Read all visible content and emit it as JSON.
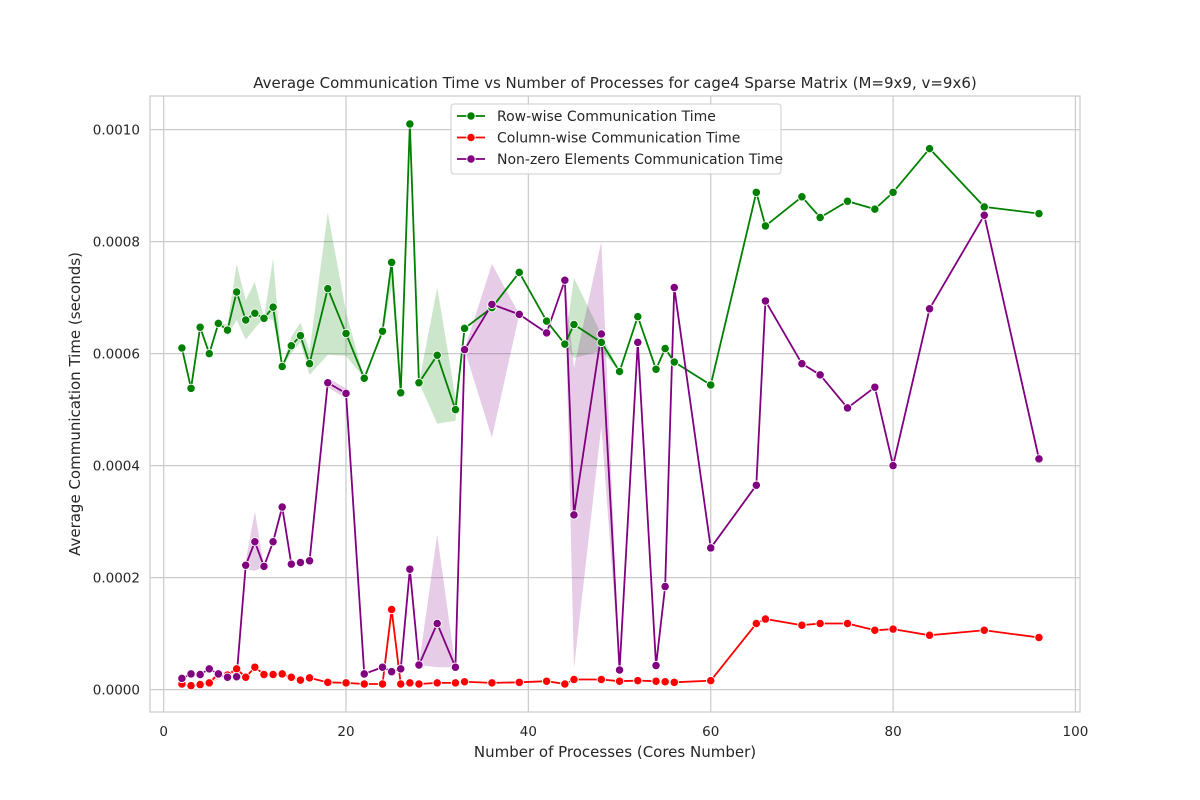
{
  "chart_data": {
    "type": "line",
    "title": "Average Communication Time vs Number of Processes for cage4 Sparse Matrix (M=9x9, v=9x6)",
    "xlabel": "Number of Processes (Cores Number)",
    "ylabel": "Average Communication Time (seconds)",
    "xlim": [
      -1.5,
      100.5
    ],
    "ylim": [
      -4e-05,
      0.00106
    ],
    "xticks": [
      0,
      20,
      40,
      60,
      80,
      100
    ],
    "xtick_labels": [
      "0",
      "20",
      "40",
      "60",
      "80",
      "100"
    ],
    "yticks": [
      0,
      0.0002,
      0.0004,
      0.0006,
      0.0008,
      0.001
    ],
    "ytick_labels": [
      "0.0000",
      "0.0002",
      "0.0004",
      "0.0006",
      "0.0008",
      "0.0010"
    ],
    "grid": true,
    "legend_position": "top-center",
    "series": [
      {
        "name": "Row-wise Communication Time",
        "color": "#008000",
        "x": [
          2,
          3,
          4,
          5,
          6,
          7,
          8,
          9,
          10,
          11,
          12,
          13,
          14,
          15,
          16,
          18,
          20,
          22,
          24,
          25,
          26,
          27,
          28,
          30,
          32,
          33,
          36,
          39,
          42,
          44,
          45,
          48,
          50,
          52,
          54,
          55,
          56,
          60,
          65,
          66,
          70,
          72,
          75,
          78,
          80,
          84,
          90,
          96
        ],
        "y": [
          0.00061,
          0.000538,
          0.000647,
          0.0006,
          0.000654,
          0.000642,
          0.00071,
          0.00066,
          0.000672,
          0.000663,
          0.000683,
          0.000577,
          0.000614,
          0.000632,
          0.000582,
          0.000716,
          0.000636,
          0.000556,
          0.00064,
          0.000763,
          0.00053,
          0.00101,
          0.000548,
          0.000597,
          0.0005,
          0.000645,
          0.000682,
          0.000745,
          0.000658,
          0.000617,
          0.000652,
          0.00062,
          0.000568,
          0.000666,
          0.000572,
          0.000609,
          0.000585,
          0.000544,
          0.000888,
          0.000828,
          0.00088,
          0.000843,
          0.000872,
          0.000858,
          0.000888,
          0.000966,
          0.000862,
          0.00085
        ],
        "band": [
          {
            "x": 7,
            "low": 0.000632,
            "high": 0.000652
          },
          {
            "x": 8,
            "low": 0.00066,
            "high": 0.00076
          },
          {
            "x": 9,
            "low": 0.000625,
            "high": 0.000695
          },
          {
            "x": 10,
            "low": 0.000645,
            "high": 0.000728
          },
          {
            "x": 12,
            "low": 0.00066,
            "high": 0.00077
          },
          {
            "x": 14,
            "low": 0.0006,
            "high": 0.00063
          },
          {
            "x": 15,
            "low": 0.00062,
            "high": 0.000655
          },
          {
            "x": 16,
            "low": 0.000562,
            "high": 0.000605
          },
          {
            "x": 18,
            "low": 0.000598,
            "high": 0.000852
          },
          {
            "x": 20,
            "low": 0.000596,
            "high": 0.000674
          },
          {
            "x": 24,
            "low": 0.000635,
            "high": 0.000645
          },
          {
            "x": 25,
            "low": 0.00072,
            "high": 0.00077
          },
          {
            "x": 30,
            "low": 0.000475,
            "high": 0.000718
          },
          {
            "x": 32,
            "low": 0.00048,
            "high": 0.000522
          },
          {
            "x": 45,
            "low": 0.000592,
            "high": 0.000735
          },
          {
            "x": 48,
            "low": 0.000605,
            "high": 0.000635
          }
        ]
      },
      {
        "name": "Column-wise Communication Time",
        "color": "#ff0000",
        "x": [
          2,
          3,
          4,
          5,
          6,
          7,
          8,
          9,
          10,
          11,
          12,
          13,
          14,
          15,
          16,
          18,
          20,
          22,
          24,
          25,
          26,
          27,
          28,
          30,
          32,
          33,
          36,
          39,
          42,
          44,
          45,
          48,
          50,
          52,
          54,
          55,
          56,
          60,
          65,
          66,
          70,
          72,
          75,
          78,
          80,
          84,
          90,
          96
        ],
        "y": [
          1e-05,
          7e-06,
          9e-06,
          1.2e-05,
          2.8e-05,
          2.6e-05,
          3.7e-05,
          2.2e-05,
          4e-05,
          2.7e-05,
          2.7e-05,
          2.8e-05,
          2.2e-05,
          1.7e-05,
          2.1e-05,
          1.3e-05,
          1.2e-05,
          1e-05,
          1e-05,
          0.000143,
          1e-05,
          1.2e-05,
          1e-05,
          1.2e-05,
          1.2e-05,
          1.4e-05,
          1.2e-05,
          1.3e-05,
          1.5e-05,
          1e-05,
          1.8e-05,
          1.8e-05,
          1.5e-05,
          1.6e-05,
          1.5e-05,
          1.4e-05,
          1.3e-05,
          1.6e-05,
          0.000118,
          0.000126,
          0.000115,
          0.000118,
          0.000118,
          0.000106,
          0.000108,
          9.7e-05,
          0.000106,
          9.3e-05
        ],
        "band": [
          {
            "x": 6,
            "low": 1.8e-05,
            "high": 3.8e-05
          },
          {
            "x": 8,
            "low": 3e-05,
            "high": 4.5e-05
          },
          {
            "x": 25,
            "low": 0.000125,
            "high": 0.00015
          }
        ]
      },
      {
        "name": "Non-zero Elements Communication Time",
        "color": "#800080",
        "x": [
          2,
          3,
          4,
          5,
          6,
          7,
          8,
          9,
          10,
          11,
          12,
          13,
          14,
          15,
          16,
          18,
          20,
          22,
          24,
          25,
          26,
          27,
          28,
          30,
          32,
          33,
          36,
          39,
          42,
          44,
          45,
          48,
          50,
          52,
          54,
          55,
          56,
          60,
          65,
          66,
          70,
          72,
          75,
          78,
          80,
          84,
          90,
          96
        ],
        "y": [
          2e-05,
          2.8e-05,
          2.7e-05,
          3.7e-05,
          2.8e-05,
          2.2e-05,
          2.3e-05,
          0.000222,
          0.000264,
          0.00022,
          0.000264,
          0.000326,
          0.000224,
          0.000227,
          0.00023,
          0.000548,
          0.000529,
          2.8e-05,
          4e-05,
          3.2e-05,
          3.7e-05,
          0.000215,
          4.4e-05,
          0.000118,
          4e-05,
          0.000607,
          0.000688,
          0.00067,
          0.000637,
          0.000731,
          0.000312,
          0.000635,
          3.5e-05,
          0.00062,
          4.3e-05,
          0.000184,
          0.000718,
          0.000253,
          0.000365,
          0.000694,
          0.000582,
          0.000562,
          0.000503,
          0.00054,
          0.0004,
          0.00068,
          0.000847,
          0.000412
        ],
        "band": [
          {
            "x": 9,
            "low": 0.000215,
            "high": 0.00023
          },
          {
            "x": 10,
            "low": 0.000212,
            "high": 0.000318
          },
          {
            "x": 12,
            "low": 0.00026,
            "high": 0.00027
          },
          {
            "x": 13,
            "low": 0.000318,
            "high": 0.000334
          },
          {
            "x": 18,
            "low": 0.00054,
            "high": 0.000556
          },
          {
            "x": 20,
            "low": 0.00052,
            "high": 0.000538
          },
          {
            "x": 30,
            "low": 4e-05,
            "high": 0.000277
          },
          {
            "x": 36,
            "low": 0.00045,
            "high": 0.00076
          },
          {
            "x": 45,
            "low": 3.8e-05,
            "high": 0.000575
          },
          {
            "x": 48,
            "low": 0.00047,
            "high": 0.0008
          },
          {
            "x": 60,
            "low": 0.00025,
            "high": 0.000256
          }
        ]
      }
    ]
  }
}
